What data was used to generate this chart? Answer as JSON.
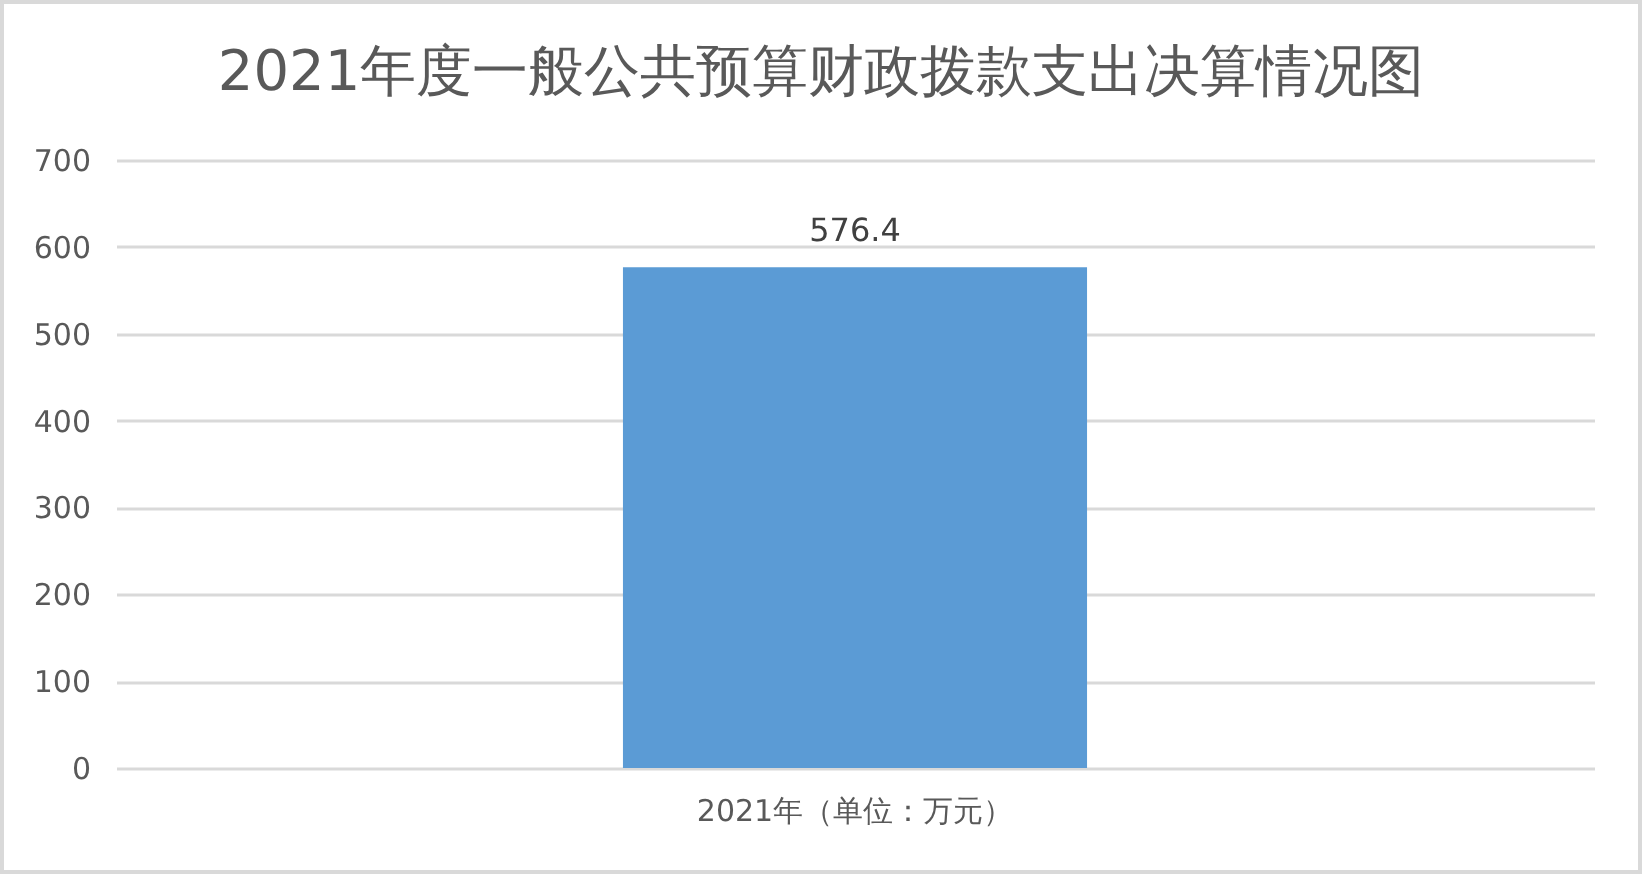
{
  "chart_data": {
    "type": "bar",
    "title": "2021年度一般公共预算财政拨款支出决算情况图",
    "categories": [
      "2021年（单位：万元）"
    ],
    "values": [
      576.4
    ],
    "color": "#5b9bd5",
    "ylim": [
      0,
      700
    ],
    "yticks": [
      0,
      100,
      200,
      300,
      400,
      500,
      600,
      700
    ],
    "grid": "y",
    "data_labels": true
  }
}
